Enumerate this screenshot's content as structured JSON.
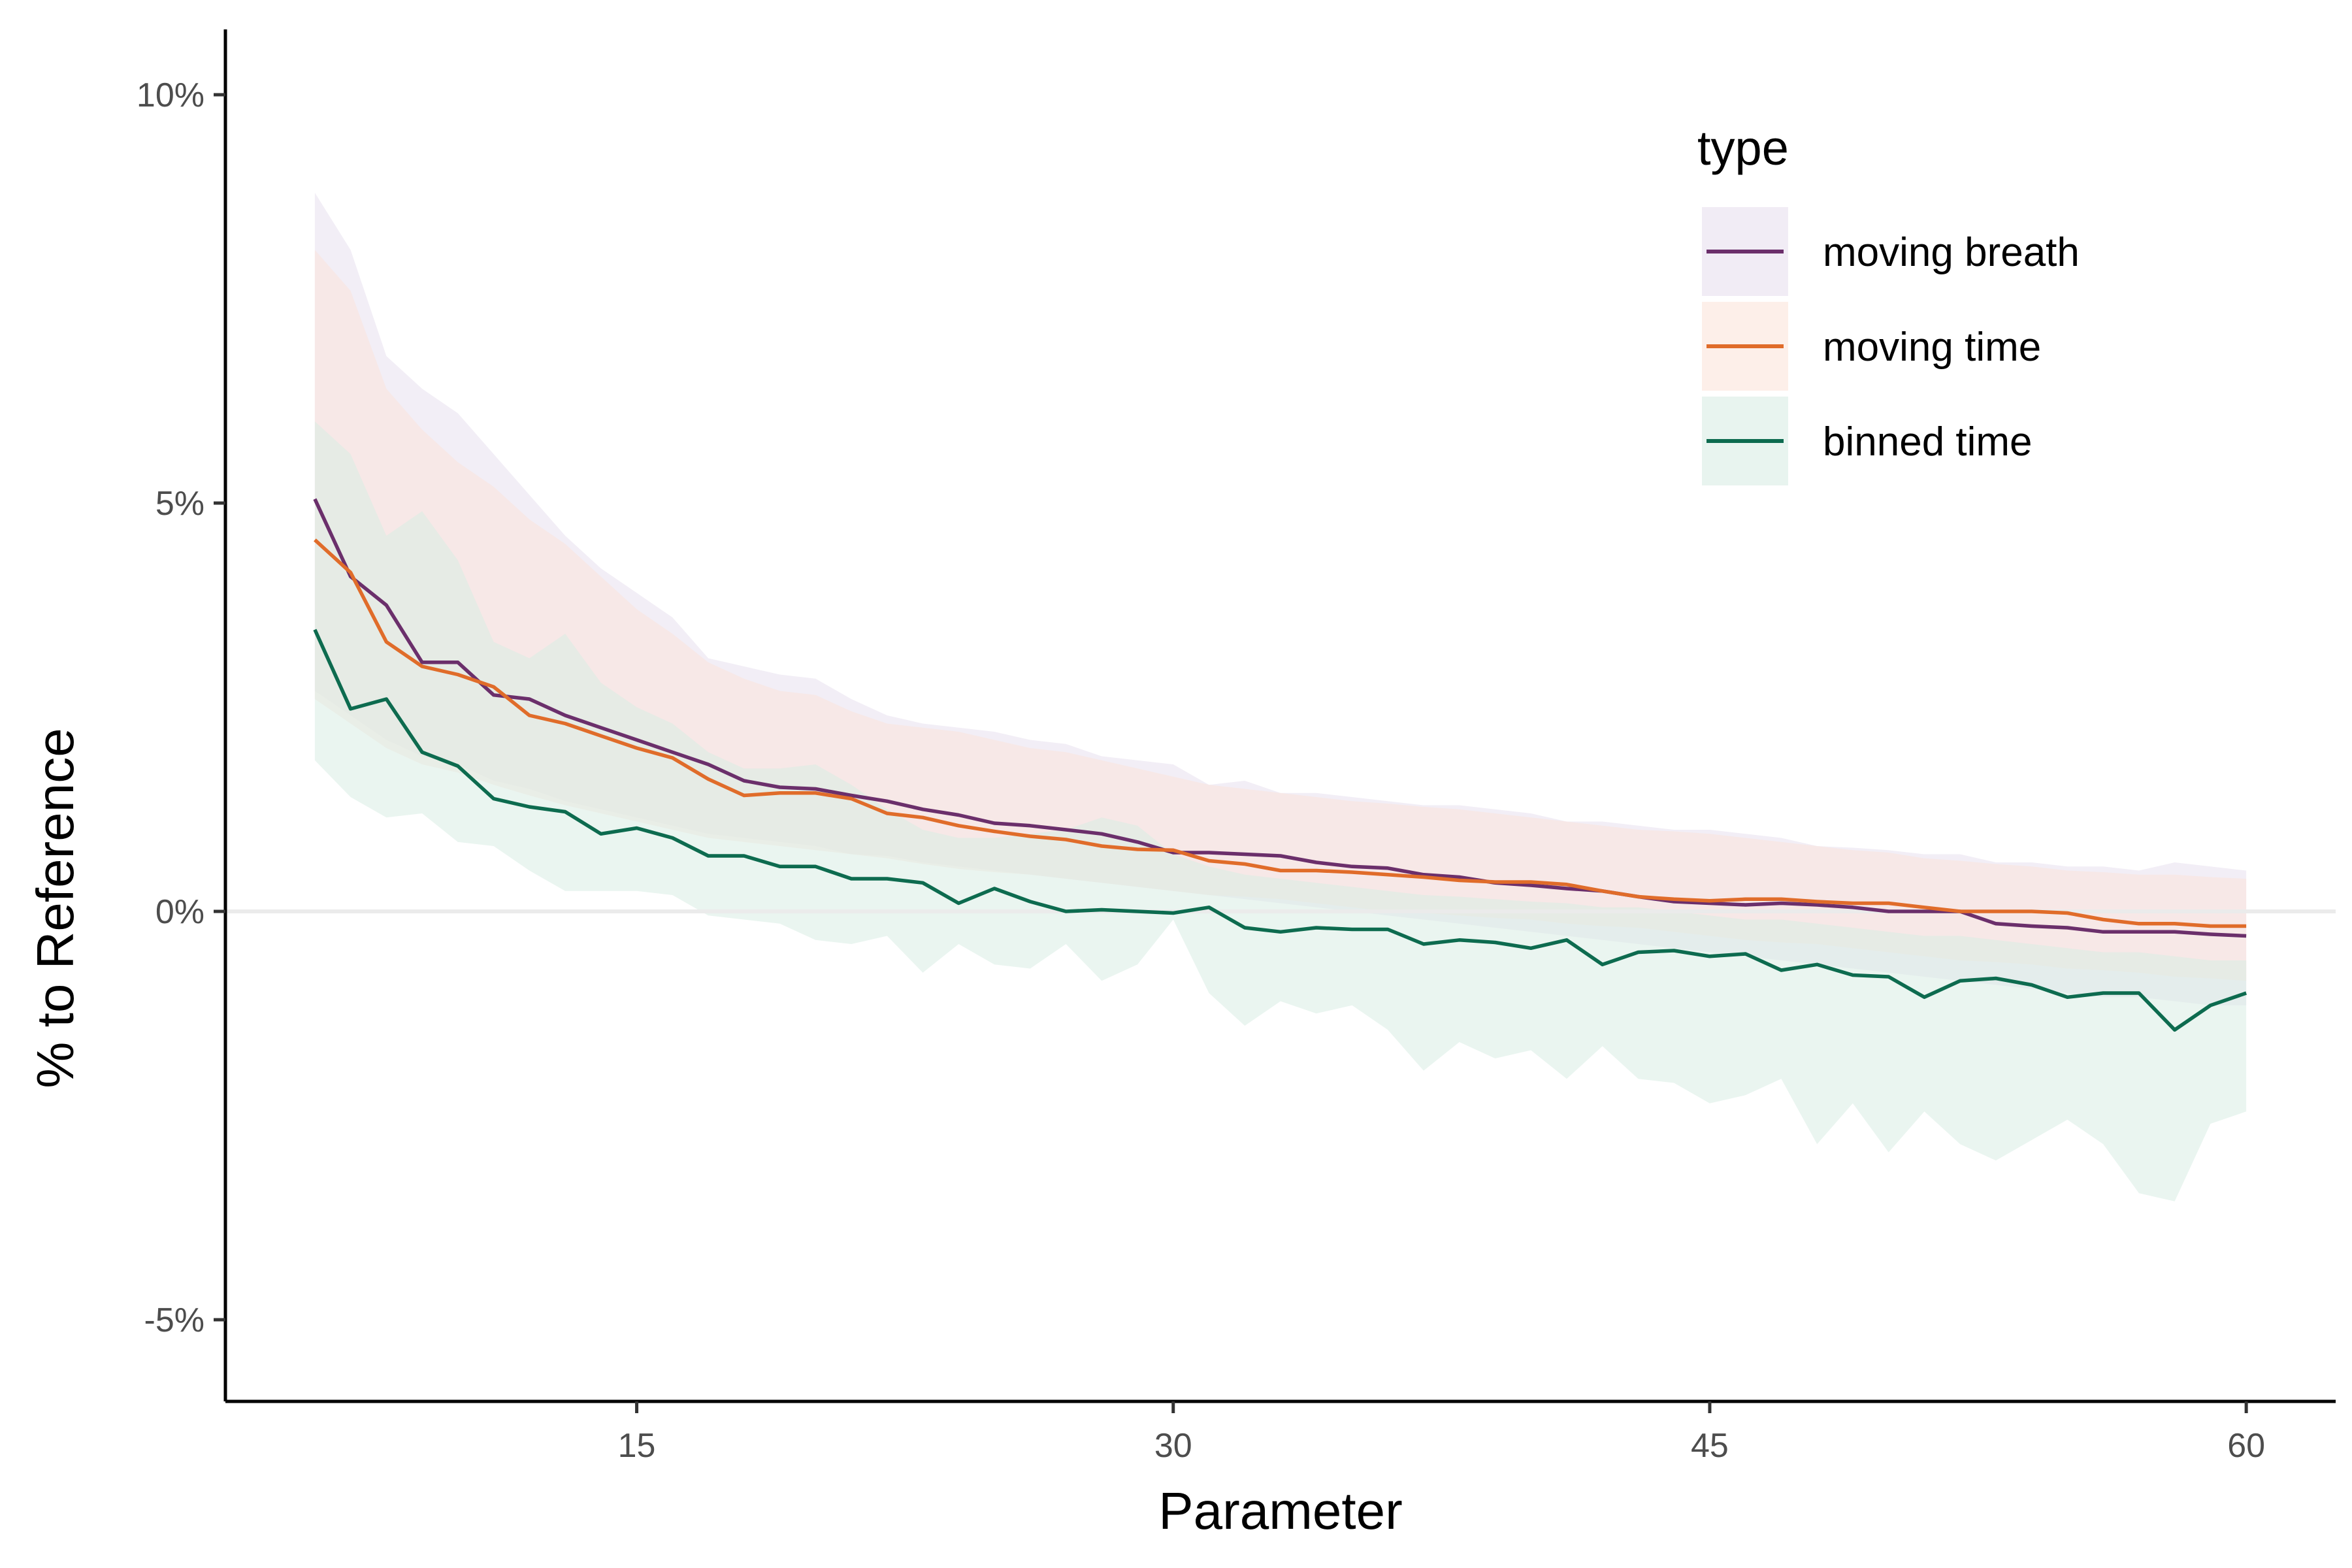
{
  "chart_data": {
    "type": "line",
    "title": "",
    "xlabel": "Parameter",
    "ylabel": "% to Reference",
    "xlim": [
      3.5,
      62.5
    ],
    "ylim": [
      -6.0,
      10.8
    ],
    "x_ticks": [
      15,
      30,
      45,
      60
    ],
    "x_tick_labels": [
      "15",
      "30",
      "45",
      "60"
    ],
    "y_ticks": [
      -5,
      0,
      5,
      10
    ],
    "y_tick_labels": [
      "-5%",
      "0%",
      "5%",
      "10%"
    ],
    "reference_line": 0,
    "grid": false,
    "legend": {
      "title": "type",
      "position": "top-right"
    },
    "x": [
      6,
      7,
      8,
      9,
      10,
      11,
      12,
      13,
      14,
      15,
      16,
      17,
      18,
      19,
      20,
      21,
      22,
      23,
      24,
      25,
      26,
      27,
      28,
      29,
      30,
      31,
      32,
      33,
      34,
      35,
      36,
      37,
      38,
      39,
      40,
      41,
      42,
      43,
      44,
      45,
      46,
      47,
      48,
      49,
      50,
      51,
      52,
      53,
      54,
      55,
      56,
      57,
      58,
      59,
      60
    ],
    "series": [
      {
        "name": "moving breath",
        "color": "#6b2f6b",
        "band_color": "#e8e0ef",
        "values": [
          5.05,
          4.1,
          3.75,
          3.05,
          3.05,
          2.65,
          2.6,
          2.4,
          2.25,
          2.1,
          1.95,
          1.8,
          1.6,
          1.52,
          1.5,
          1.42,
          1.35,
          1.25,
          1.18,
          1.08,
          1.05,
          1.0,
          0.95,
          0.85,
          0.72,
          0.72,
          0.7,
          0.68,
          0.6,
          0.55,
          0.53,
          0.45,
          0.42,
          0.35,
          0.32,
          0.28,
          0.25,
          0.18,
          0.12,
          0.1,
          0.08,
          0.1,
          0.08,
          0.05,
          0.0,
          0.0,
          0.0,
          -0.15,
          -0.18,
          -0.2,
          -0.25,
          -0.25,
          -0.25,
          -0.28,
          -0.3
        ],
        "band_upper": [
          8.8,
          8.1,
          6.8,
          6.4,
          6.1,
          5.6,
          5.1,
          4.6,
          4.2,
          3.9,
          3.6,
          3.1,
          3.0,
          2.9,
          2.85,
          2.6,
          2.4,
          2.3,
          2.25,
          2.2,
          2.1,
          2.05,
          1.9,
          1.85,
          1.8,
          1.55,
          1.6,
          1.45,
          1.45,
          1.4,
          1.35,
          1.3,
          1.3,
          1.25,
          1.2,
          1.1,
          1.1,
          1.05,
          1.0,
          1.0,
          0.95,
          0.9,
          0.8,
          0.78,
          0.75,
          0.7,
          0.7,
          0.6,
          0.6,
          0.55,
          0.55,
          0.5,
          0.6,
          0.55,
          0.5
        ],
        "band_lower": [
          2.7,
          2.4,
          2.1,
          1.9,
          1.8,
          1.6,
          1.5,
          1.35,
          1.25,
          1.15,
          1.05,
          0.95,
          0.9,
          0.85,
          0.8,
          0.7,
          0.68,
          0.6,
          0.55,
          0.5,
          0.45,
          0.4,
          0.35,
          0.3,
          0.25,
          0.2,
          0.15,
          0.1,
          0.05,
          0.0,
          -0.05,
          -0.1,
          -0.15,
          -0.2,
          -0.25,
          -0.3,
          -0.35,
          -0.4,
          -0.45,
          -0.5,
          -0.55,
          -0.6,
          -0.65,
          -0.7,
          -0.75,
          -0.8,
          -0.85,
          -0.9,
          -0.95,
          -1.0,
          -1.05,
          -1.05,
          -1.1,
          -1.15,
          -1.15
        ]
      },
      {
        "name": "moving time",
        "color": "#e06c2a",
        "band_color": "#fbe4da",
        "values": [
          4.55,
          4.15,
          3.3,
          3.0,
          2.9,
          2.75,
          2.4,
          2.3,
          2.15,
          2.0,
          1.88,
          1.62,
          1.42,
          1.45,
          1.45,
          1.38,
          1.2,
          1.15,
          1.05,
          0.98,
          0.92,
          0.88,
          0.8,
          0.76,
          0.75,
          0.62,
          0.58,
          0.5,
          0.5,
          0.48,
          0.45,
          0.42,
          0.38,
          0.36,
          0.36,
          0.33,
          0.25,
          0.18,
          0.15,
          0.13,
          0.15,
          0.15,
          0.12,
          0.1,
          0.1,
          0.05,
          0.0,
          0.0,
          0.0,
          -0.02,
          -0.1,
          -0.15,
          -0.15,
          -0.18,
          -0.18
        ],
        "band_upper": [
          8.1,
          7.6,
          6.4,
          5.9,
          5.5,
          5.2,
          4.8,
          4.5,
          4.1,
          3.7,
          3.4,
          3.05,
          2.85,
          2.7,
          2.65,
          2.45,
          2.3,
          2.25,
          2.2,
          2.1,
          2.0,
          1.95,
          1.85,
          1.75,
          1.65,
          1.55,
          1.5,
          1.45,
          1.4,
          1.35,
          1.32,
          1.28,
          1.25,
          1.2,
          1.15,
          1.1,
          1.05,
          1.0,
          0.98,
          0.95,
          0.9,
          0.85,
          0.8,
          0.75,
          0.72,
          0.65,
          0.62,
          0.58,
          0.55,
          0.5,
          0.48,
          0.45,
          0.45,
          0.42,
          0.4
        ],
        "band_lower": [
          2.6,
          2.3,
          2.0,
          1.8,
          1.7,
          1.55,
          1.42,
          1.3,
          1.2,
          1.1,
          1.0,
          0.9,
          0.85,
          0.8,
          0.75,
          0.7,
          0.65,
          0.58,
          0.52,
          0.48,
          0.45,
          0.4,
          0.35,
          0.3,
          0.25,
          0.2,
          0.18,
          0.15,
          0.1,
          0.05,
          0.0,
          -0.02,
          -0.05,
          -0.08,
          -0.1,
          -0.15,
          -0.18,
          -0.2,
          -0.25,
          -0.3,
          -0.35,
          -0.38,
          -0.4,
          -0.45,
          -0.5,
          -0.55,
          -0.6,
          -0.62,
          -0.65,
          -0.7,
          -0.72,
          -0.75,
          -0.8,
          -0.82,
          -0.85
        ]
      },
      {
        "name": "binned time",
        "color": "#0d6b4f",
        "band_color": "#d8ece4",
        "values": [
          3.45,
          2.48,
          2.6,
          1.95,
          1.78,
          1.38,
          1.28,
          1.22,
          0.95,
          1.02,
          0.9,
          0.68,
          0.68,
          0.55,
          0.55,
          0.4,
          0.4,
          0.35,
          0.1,
          0.28,
          0.12,
          0.0,
          0.02,
          0.0,
          -0.02,
          0.05,
          -0.2,
          -0.25,
          -0.2,
          -0.22,
          -0.22,
          -0.4,
          -0.35,
          -0.38,
          -0.45,
          -0.35,
          -0.65,
          -0.5,
          -0.48,
          -0.55,
          -0.52,
          -0.72,
          -0.65,
          -0.78,
          -0.8,
          -1.05,
          -0.85,
          -0.82,
          -0.9,
          -1.05,
          -1.0,
          -1.0,
          -1.45,
          -1.15,
          -1.0
        ],
        "band_upper": [
          6.0,
          5.6,
          4.6,
          4.9,
          4.3,
          3.3,
          3.1,
          3.4,
          2.8,
          2.5,
          2.3,
          1.95,
          1.75,
          1.75,
          1.8,
          1.55,
          1.25,
          1.0,
          0.9,
          0.9,
          0.95,
          1.0,
          1.15,
          1.05,
          0.7,
          0.55,
          0.45,
          0.4,
          0.35,
          0.3,
          0.25,
          0.2,
          0.18,
          0.15,
          0.12,
          0.1,
          0.05,
          0.05,
          0.0,
          -0.05,
          -0.1,
          -0.1,
          -0.15,
          -0.2,
          -0.25,
          -0.3,
          -0.3,
          -0.35,
          -0.4,
          -0.45,
          -0.5,
          -0.5,
          -0.55,
          -0.6,
          -0.6
        ],
        "band_lower": [
          1.85,
          1.4,
          1.15,
          1.2,
          0.85,
          0.8,
          0.5,
          0.25,
          0.25,
          0.25,
          0.2,
          -0.05,
          -0.1,
          -0.15,
          -0.35,
          -0.4,
          -0.3,
          -0.75,
          -0.4,
          -0.65,
          -0.7,
          -0.4,
          -0.85,
          -0.65,
          -0.1,
          -1.0,
          -1.4,
          -1.1,
          -1.25,
          -1.15,
          -1.45,
          -1.95,
          -1.6,
          -1.8,
          -1.7,
          -2.05,
          -1.65,
          -2.05,
          -2.1,
          -2.35,
          -2.25,
          -2.05,
          -2.85,
          -2.35,
          -2.95,
          -2.45,
          -2.85,
          -3.05,
          -2.8,
          -2.55,
          -2.85,
          -3.45,
          -3.55,
          -2.6,
          -2.45
        ]
      }
    ]
  }
}
